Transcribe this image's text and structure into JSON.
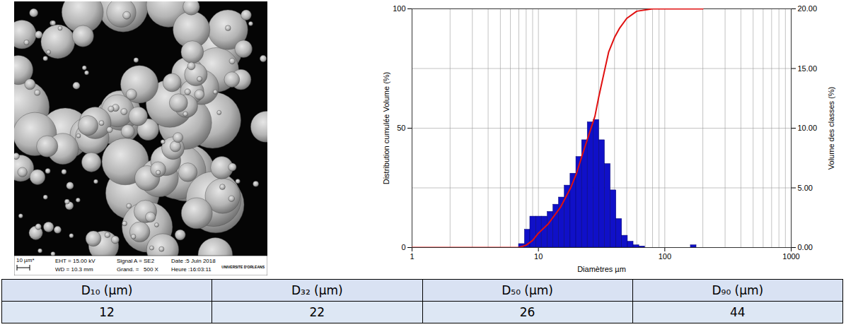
{
  "image": {
    "scale_bar": "10 µm*",
    "info": [
      [
        "EHT = 15.00 kV",
        "WD = 10.3 mm"
      ],
      [
        "Signal A = SE2",
        "Grand. =   500 X"
      ],
      [
        "Date :5 Juin 2018",
        "Heure :16:03:11"
      ]
    ],
    "logo": "UNIVERSITE D'ORLEANS"
  },
  "chart_data": {
    "type": "histogram",
    "xlabel": "Diamètres µm",
    "ylabel": "Distribution cumulée Volume (%)",
    "y2label": "Volume des classes (%)",
    "log": "x",
    "grid": true,
    "xlim": [
      1,
      1000
    ],
    "xticks": [
      1,
      10,
      100,
      1000
    ],
    "ylim": [
      0,
      100
    ],
    "yticks": [
      0,
      50,
      100
    ],
    "y2lim": [
      0,
      20
    ],
    "y2ticks": [
      {
        "value": 0,
        "label": "0.00"
      },
      {
        "value": 5,
        "label": "5.00"
      },
      {
        "value": 10,
        "label": "10.00"
      },
      {
        "value": 15,
        "label": "15.00"
      },
      {
        "value": 20,
        "label": "20.00"
      }
    ],
    "series": [
      {
        "type": "histogram",
        "axis": "y2",
        "color": "#1010c8",
        "bins": [
          7.0,
          7.8,
          8.6,
          9.6,
          10.6,
          11.8,
          13.1,
          14.5,
          16.1,
          17.9,
          19.9,
          22.1,
          24.5,
          27.2,
          30.2,
          33.5,
          37.2,
          41.3,
          45.8,
          50.9,
          56.5,
          62.7,
          69.6,
          77.2,
          85.7,
          95.1,
          105.6,
          117.2,
          130.1,
          144.4,
          160.3,
          177.9,
          197.5
        ],
        "values": [
          0.3,
          1.5,
          2.6,
          2.6,
          2.6,
          3.0,
          3.6,
          4.2,
          5.2,
          6.2,
          7.6,
          9.0,
          10.5,
          10.7,
          9.0,
          7.0,
          4.8,
          2.4,
          1.0,
          0.5,
          0.2,
          0.1,
          0,
          0,
          0,
          0,
          0,
          0,
          0,
          0,
          0.2,
          0
        ]
      },
      {
        "type": "line",
        "color": "#e01010",
        "x": [
          1,
          7,
          8,
          9,
          10,
          12,
          15,
          18,
          20,
          22,
          25,
          28,
          30,
          33,
          36,
          40,
          44,
          50,
          60,
          80,
          200
        ],
        "values": [
          0,
          0,
          1,
          3,
          6,
          10,
          17,
          25,
          31,
          38,
          47,
          55,
          63,
          73,
          82,
          88,
          92,
          96,
          99,
          100,
          100
        ]
      }
    ]
  },
  "table": {
    "header": [
      "D₁₀ (µm)",
      "D₃₂ (µm)",
      "D₅₀ (µm)",
      "D₉₀ (µm)"
    ],
    "rows": [
      [
        12,
        22,
        26,
        44
      ]
    ]
  }
}
